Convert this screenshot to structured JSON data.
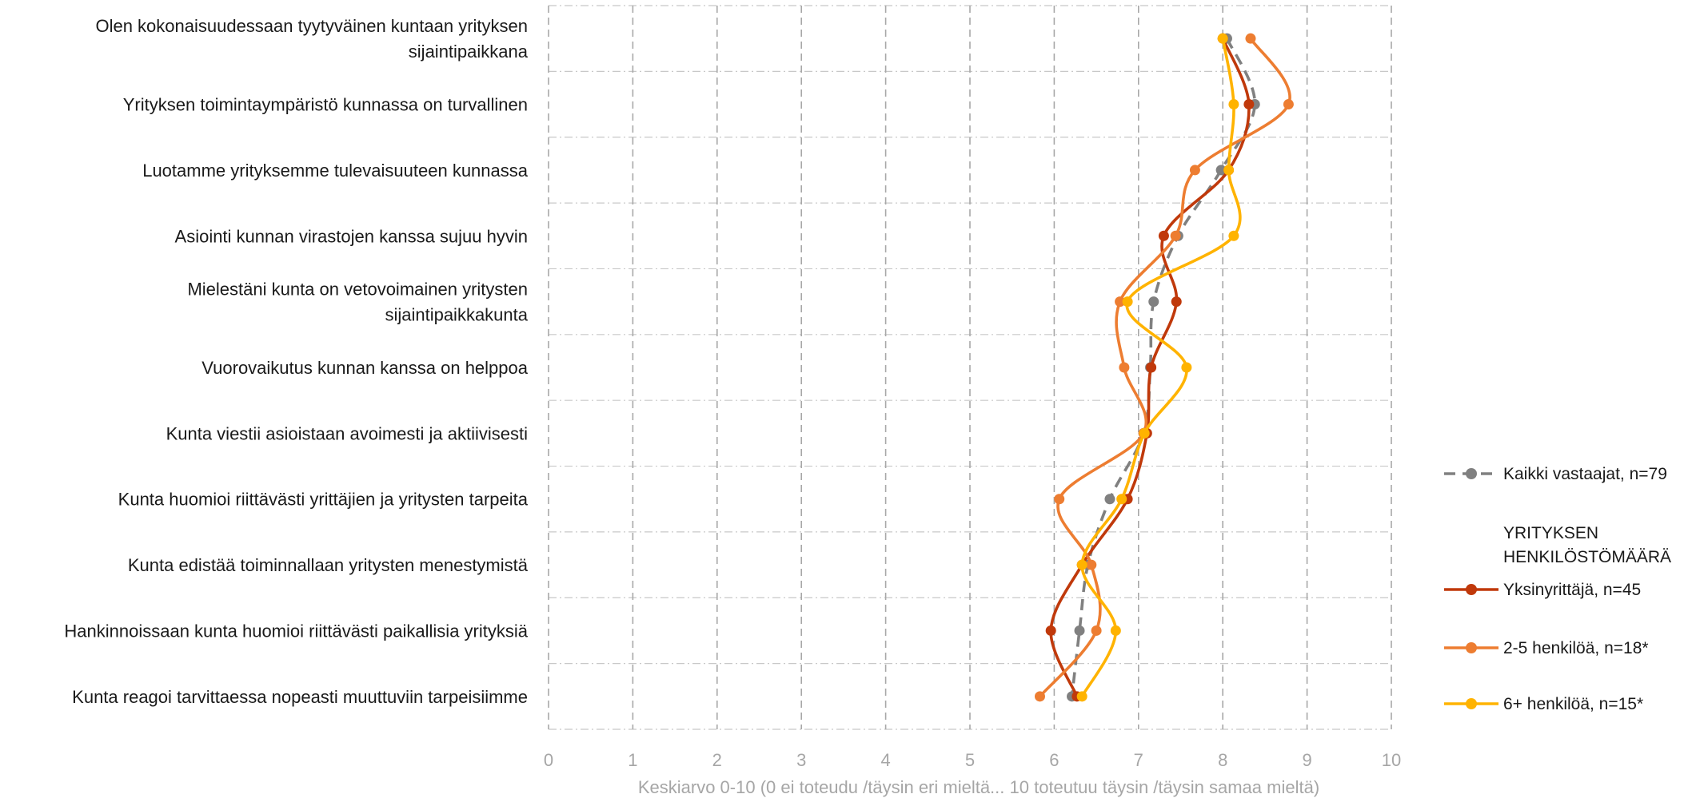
{
  "chart_data": {
    "type": "line",
    "orientation": "horizontal-categories",
    "title": "",
    "categories": [
      "Olen kokonaisuudessaan tyytyväinen kuntaan yrityksen sijaintipaikkana",
      "Yrityksen toimintaympäristö kunnassa on turvallinen",
      "Luotamme yrityksemme tulevaisuuteen kunnassa",
      "Asiointi kunnan virastojen kanssa sujuu hyvin",
      "Mielestäni kunta on vetovoimainen yritysten sijaintipaikkakunta",
      "Vuorovaikutus kunnan kanssa on helppoa",
      "Kunta viestii asioistaan avoimesti ja aktiivisesti",
      "Kunta huomioi riittävästi yrittäjien ja yritysten tarpeita",
      "Kunta edistää toiminnallaan yritysten menestymistä",
      "Hankinnoissaan kunta huomioi riittävästi paikallisia yrityksiä",
      "Kunta reagoi tarvittaessa nopeasti muuttuviin tarpeisiimme"
    ],
    "category_lines": [
      [
        "Olen kokonaisuudessaan tyytyväinen kuntaan yrityksen",
        "sijaintipaikkana"
      ],
      [
        "Yrityksen toimintaympäristö kunnassa on turvallinen"
      ],
      [
        "Luotamme yrityksemme tulevaisuuteen kunnassa"
      ],
      [
        "Asiointi kunnan virastojen kanssa sujuu hyvin"
      ],
      [
        "Mielestäni kunta on vetovoimainen yritysten",
        "sijaintipaikkakunta"
      ],
      [
        "Vuorovaikutus kunnan kanssa on helppoa"
      ],
      [
        "Kunta viestii asioistaan avoimesti ja aktiivisesti"
      ],
      [
        "Kunta huomioi riittävästi yrittäjien ja yritysten tarpeita"
      ],
      [
        "Kunta edistää toiminnallaan yritysten menestymistä"
      ],
      [
        "Hankinnoissaan kunta huomioi riittävästi paikallisia yrityksiä"
      ],
      [
        "Kunta reagoi tarvittaessa nopeasti muuttuviin tarpeisiimme"
      ]
    ],
    "xlabel": "Keskiarvo 0-10 (0 ei toteudu /täysin eri mieltä... 10 toteutuu täysin /täysin samaa mieltä)",
    "xlim": [
      0,
      10
    ],
    "xticks": [
      "0",
      "1",
      "2",
      "3",
      "4",
      "5",
      "6",
      "7",
      "8",
      "9",
      "10"
    ],
    "grid": true,
    "legend_position": "right",
    "legend_group_title": [
      "YRITYKSEN",
      "HENKILÖSTÖMÄÄRÄ"
    ],
    "series": [
      {
        "name": "Kaikki vastaajat, n=79",
        "color": "#808080",
        "dashed": true,
        "values": [
          8.05,
          8.38,
          7.98,
          7.47,
          7.18,
          7.14,
          7.06,
          6.66,
          6.4,
          6.3,
          6.21
        ]
      },
      {
        "name": "Yksinyrittäjä, n=45",
        "color": "#c0390b",
        "dashed": false,
        "values": [
          8.0,
          8.31,
          8.07,
          7.3,
          7.45,
          7.15,
          7.1,
          6.87,
          6.33,
          5.96,
          6.27
        ]
      },
      {
        "name": "2-5 henkilöä, n=18*",
        "color": "#ed7d31",
        "dashed": false,
        "values": [
          8.33,
          8.78,
          7.67,
          7.44,
          6.78,
          6.83,
          7.06,
          6.06,
          6.44,
          6.5,
          5.83
        ]
      },
      {
        "name": "6+ henkilöä, n=15*",
        "color": "#ffb300",
        "dashed": false,
        "values": [
          8.0,
          8.13,
          8.07,
          8.13,
          6.87,
          7.57,
          7.07,
          6.8,
          6.33,
          6.73,
          6.33
        ]
      }
    ]
  }
}
